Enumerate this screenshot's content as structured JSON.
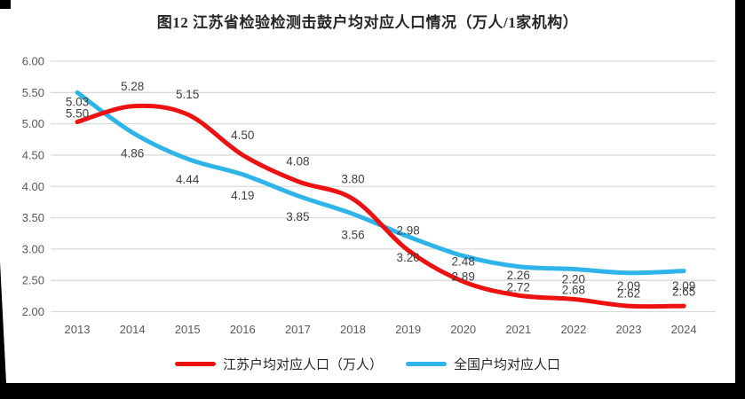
{
  "title": "图12  江苏省检验检测击鼓户均对应人口情况（万人/1家机构）",
  "chart_data": {
    "type": "line",
    "smoothed": true,
    "categories": [
      "2013",
      "2014",
      "2015",
      "2016",
      "2017",
      "2018",
      "2019",
      "2020",
      "2021",
      "2022",
      "2023",
      "2024"
    ],
    "series": [
      {
        "name": "江苏户均对应人口（万人）",
        "color": "#ee1111",
        "label_position": "above",
        "values": [
          5.03,
          5.28,
          5.15,
          4.5,
          4.08,
          3.8,
          2.98,
          2.48,
          2.26,
          2.2,
          2.09,
          2.09
        ]
      },
      {
        "name": "全国户均对应人口",
        "color": "#2eb4e8",
        "label_position": "below",
        "values": [
          5.5,
          4.86,
          4.44,
          4.19,
          3.85,
          3.56,
          3.2,
          2.89,
          2.72,
          2.68,
          2.62,
          2.65
        ]
      }
    ],
    "ylim": [
      2.0,
      6.0
    ],
    "ytick_step": 0.5,
    "yticks": [
      "6.00",
      "5.50",
      "5.00",
      "4.50",
      "4.00",
      "3.50",
      "3.00",
      "2.50",
      "2.00"
    ],
    "value_label_decimals": 2,
    "grid": "horizontal",
    "legend_position": "bottom",
    "xlabel": "",
    "ylabel": ""
  },
  "palette": {
    "gridline": "#d9d9d9",
    "tick_text": "#595959",
    "value_label_text": "#404040",
    "title_text": "#262626",
    "background": "#ffffff",
    "frame": "#000000"
  }
}
